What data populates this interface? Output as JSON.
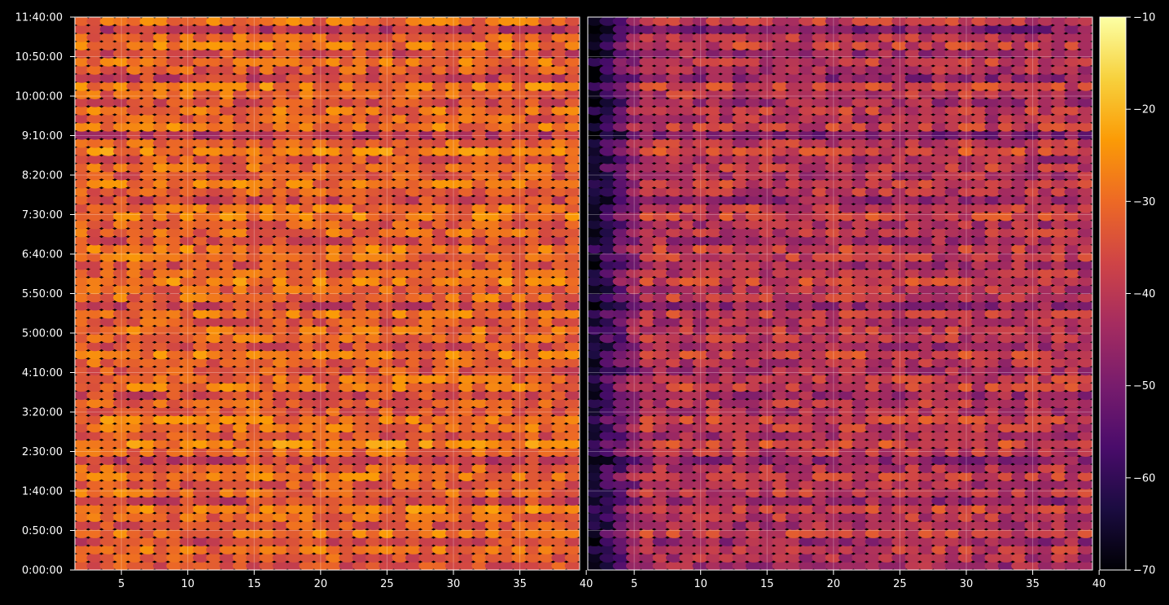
{
  "chart_data": {
    "type": "heatmap",
    "title": "",
    "xlabel": "",
    "ylabel": "",
    "grid": true,
    "background": "#000000",
    "colormap": "inferno",
    "colormap_stops": [
      "#000004",
      "#1b0c41",
      "#4a0c6b",
      "#781c6d",
      "#a52c60",
      "#cf4446",
      "#ed6925",
      "#fb9b06",
      "#f7d13d",
      "#fcffa4"
    ],
    "colorbar": {
      "min": -70,
      "max": -10,
      "ticks": [
        -10,
        -20,
        -30,
        -40,
        -50,
        -60,
        -70
      ],
      "tick_labels": [
        "−10",
        "−20",
        "−30",
        "−40",
        "−50",
        "−60",
        "−70"
      ]
    },
    "panels": [
      {
        "name": "left",
        "x_range": [
          1.5,
          39.5
        ],
        "x_ticks": [
          5,
          10,
          15,
          20,
          25,
          30,
          35,
          40
        ],
        "x_tick_labels": [
          "5",
          "10",
          "15",
          "20",
          "25",
          "30",
          "35",
          "40"
        ],
        "level_offset_db": 0,
        "left_edge_dark": false
      },
      {
        "name": "right",
        "x_range": [
          1.5,
          39.5
        ],
        "x_ticks": [
          5,
          10,
          15,
          20,
          25,
          30,
          35,
          40
        ],
        "x_tick_labels": [
          "5",
          "10",
          "15",
          "20",
          "25",
          "30",
          "35",
          "40"
        ],
        "level_offset_db": -9,
        "left_edge_dark": true
      }
    ],
    "y_range_seconds": [
      0,
      42000
    ],
    "y_ticks_seconds": [
      0,
      3000,
      6000,
      9000,
      12000,
      15000,
      18000,
      21000,
      24000,
      27000,
      30000,
      33000,
      36000,
      39000,
      42000
    ],
    "y_tick_labels": [
      "0:00:00",
      "0:50:00",
      "1:40:00",
      "2:30:00",
      "3:20:00",
      "4:10:00",
      "5:00:00",
      "5:50:00",
      "6:40:00",
      "7:30:00",
      "8:20:00",
      "9:10:00",
      "10:00:00",
      "10:50:00",
      "11:40:00"
    ],
    "rows": 68,
    "cols": 38,
    "value_range_db": [
      -70,
      -10
    ],
    "row_profile_db": [
      -35,
      -33,
      -30,
      -36,
      -29,
      -34,
      -31,
      -28,
      -37,
      -30,
      -33,
      -29,
      -32,
      -38,
      -31,
      -27,
      -34,
      -30,
      -28,
      -33,
      -31,
      -36,
      -29,
      -30,
      -34,
      -32,
      -28,
      -35,
      -31,
      -30,
      -33,
      -29,
      -37,
      -30,
      -32,
      -28,
      -31,
      -34,
      -30,
      -29,
      -35,
      -31,
      -33,
      -28,
      -30,
      -36,
      -31,
      -29,
      -33,
      -30,
      -34,
      -27,
      -31,
      -40,
      -29,
      -32,
      -30,
      -35,
      -31,
      -28,
      -38,
      -33,
      -30,
      -36,
      -29,
      -31,
      -40,
      -30
    ]
  }
}
